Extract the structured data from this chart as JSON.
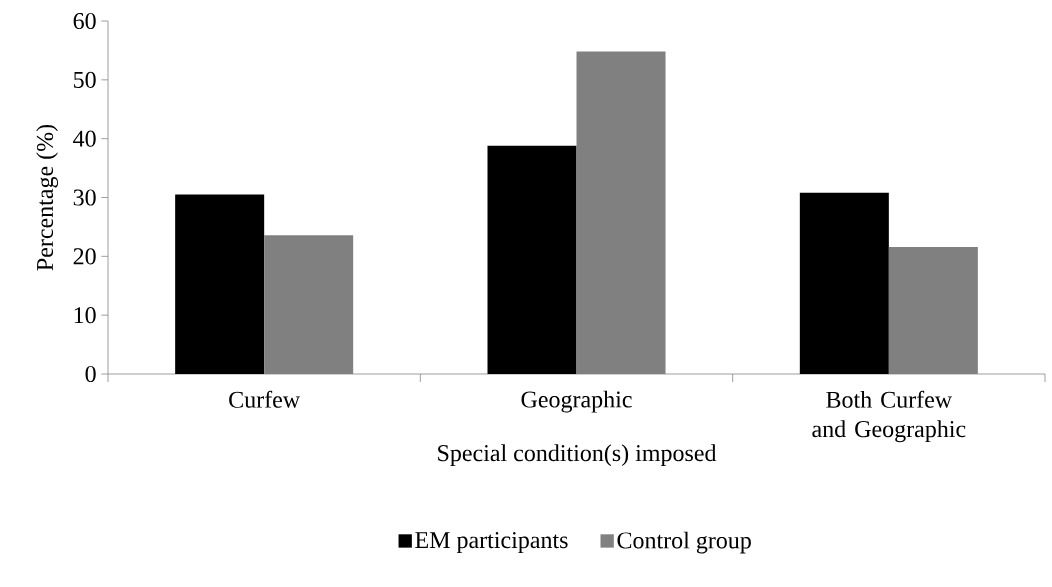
{
  "chart_data": {
    "type": "bar",
    "xlabel": "Special condition(s) imposed",
    "ylabel": "Percentage (%)",
    "categories": [
      "Curfew",
      "Geographic",
      "Both Curfew and Geographic"
    ],
    "series": [
      {
        "name": "EM participants",
        "color": "#000000",
        "values": [
          30.5,
          38.8,
          30.8
        ]
      },
      {
        "name": "Control group",
        "color": "#808080",
        "values": [
          23.6,
          54.8,
          21.6
        ]
      }
    ],
    "ylim": [
      0,
      60
    ],
    "yticks": [
      0,
      10,
      20,
      30,
      40,
      50,
      60
    ],
    "grid": false,
    "legend": "bottom"
  }
}
